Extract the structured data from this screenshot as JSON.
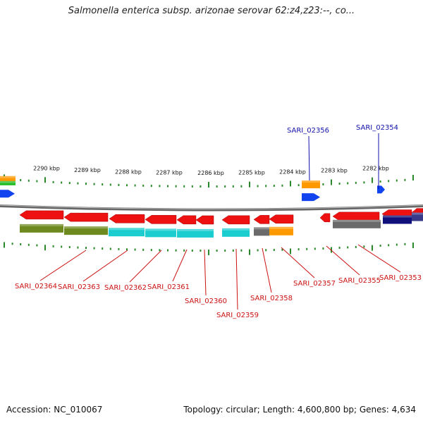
{
  "title": "Salmonella enterica subsp. arizonae serovar 62:z4,z23:--, co...",
  "footer": {
    "accession": "Accession: NC_010067",
    "stats": "Topology: circular; Length: 4,600,800 bp; Genes: 4,634"
  },
  "colors": {
    "gene_red": "#ee1111",
    "backbone": "#888888",
    "tick_green": "#2a8a2a",
    "label_red": "#cc1111",
    "label_blue": "#1111aa",
    "olive": "#6e8a1e",
    "cyan": "#1ccdd0",
    "orange": "#ff9900",
    "gray": "#6a6a6a",
    "navy": "#10107a",
    "blue": "#1144ee",
    "green": "#22bb22"
  },
  "scale_labels": [
    "2290 kbp",
    "2289 kbp",
    "2288 kbp",
    "2287 kbp",
    "2286 kbp",
    "2285 kbp",
    "2284 kbp",
    "2283 kbp",
    "2282 kbp"
  ],
  "top_gene_labels": [
    "SARI_02356",
    "SARI_02354"
  ],
  "bottom_gene_labels": [
    "SARI_02364",
    "SARI_02363",
    "SARI_02362",
    "SARI_02361",
    "SARI_02360",
    "SARI_02359",
    "SARI_02358",
    "SARI_02357",
    "SARI_02355",
    "SARI_02353"
  ]
}
